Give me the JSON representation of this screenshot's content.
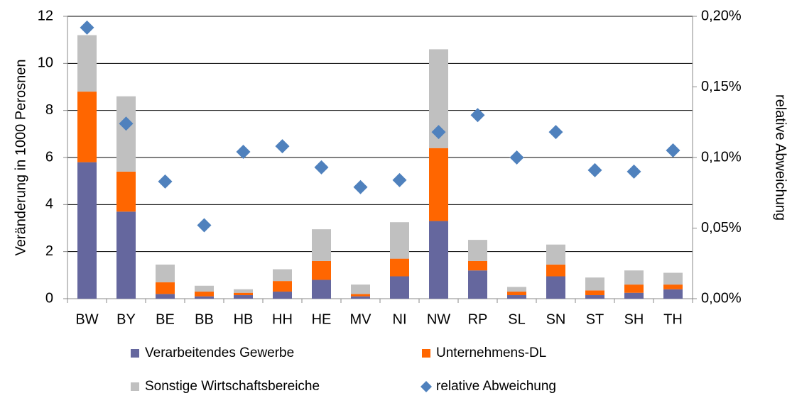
{
  "chart_data": {
    "type": "bar",
    "stacked": true,
    "categories": [
      "BW",
      "BY",
      "BE",
      "BB",
      "HB",
      "HH",
      "HE",
      "MV",
      "NI",
      "NW",
      "RP",
      "SL",
      "SN",
      "ST",
      "SH",
      "TH"
    ],
    "y_label": "Veränderung in 1000 Perosnen",
    "y2_label": "relative Abweichung",
    "ylim": [
      0,
      12
    ],
    "yticks": [
      0,
      2,
      4,
      6,
      8,
      10,
      12
    ],
    "y2lim": [
      0,
      0.2
    ],
    "y2ticks": [
      {
        "value": 0,
        "label": "0,00%"
      },
      {
        "value": 0.05,
        "label": "0,05%"
      },
      {
        "value": 0.1,
        "label": "0,10%"
      },
      {
        "value": 0.15,
        "label": "0,15%"
      },
      {
        "value": 0.2,
        "label": "0,20%"
      }
    ],
    "grid": true,
    "series": [
      {
        "name": "Verarbeitendes Gewerbe",
        "color": "#65679e",
        "values": [
          5.8,
          3.7,
          0.2,
          0.1,
          0.15,
          0.3,
          0.8,
          0.1,
          0.95,
          3.3,
          1.2,
          0.15,
          0.95,
          0.15,
          0.25,
          0.4
        ]
      },
      {
        "name": "Unternehmens-DL",
        "color": "#ff6600",
        "values": [
          3.0,
          1.7,
          0.5,
          0.2,
          0.1,
          0.45,
          0.8,
          0.1,
          0.75,
          3.1,
          0.4,
          0.15,
          0.5,
          0.2,
          0.35,
          0.2
        ]
      },
      {
        "name": "Sonstige Wirtschaftsbereiche",
        "color": "#c0c0c0",
        "values": [
          2.4,
          3.2,
          0.75,
          0.25,
          0.15,
          0.5,
          1.35,
          0.4,
          1.55,
          4.2,
          0.9,
          0.2,
          0.85,
          0.55,
          0.6,
          0.5
        ]
      },
      {
        "name": "relative Abweichung",
        "type": "scatter",
        "axis": "y2",
        "color": "#4f81bd",
        "values": [
          0.192,
          0.124,
          0.083,
          0.052,
          0.104,
          0.108,
          0.093,
          0.079,
          0.084,
          0.118,
          0.13,
          0.1,
          0.118,
          0.091,
          0.09,
          0.105
        ]
      }
    ]
  }
}
